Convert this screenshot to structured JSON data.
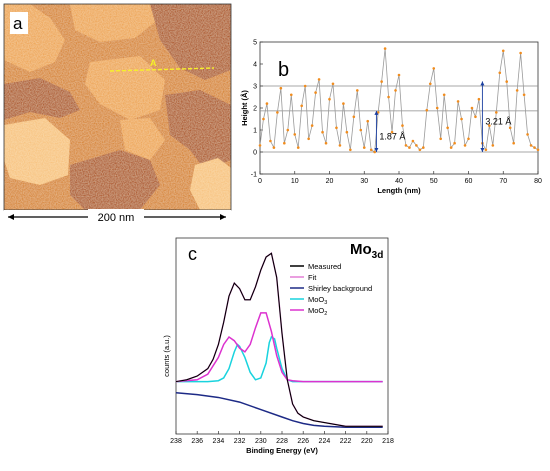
{
  "panel_a": {
    "label": "a",
    "line_label": "A",
    "scale_bar": "200 nm",
    "colors": {
      "terrace_low": "#a94b08",
      "terrace_mid": "#d57f22",
      "terrace_high": "#eda24e",
      "terrace_top": "#f7c17c",
      "line": "#f6f02a"
    }
  },
  "chart_data": [
    {
      "type": "line",
      "panel": "b",
      "label": "b",
      "xlabel": "Length (nm)",
      "ylabel": "Height (Å)",
      "xlim": [
        0,
        80
      ],
      "ylim": [
        -1,
        5
      ],
      "xticks": [
        "0",
        "10",
        "20",
        "30",
        "40",
        "50",
        "60",
        "70",
        "80"
      ],
      "yticks": [
        "-1",
        "0",
        "1",
        "2",
        "3",
        "4",
        "5"
      ],
      "reference_lines": [
        0,
        1.87,
        3.0
      ],
      "annotations": [
        {
          "text": "1.87 Å",
          "x": 33.5,
          "y_from": 0,
          "y_to": 1.87
        },
        {
          "text": "3.21 Å",
          "x": 64,
          "y_from": 0,
          "y_to": 3.21
        }
      ],
      "series": [
        {
          "color": "#f08c1e",
          "x": [
            0,
            1,
            2,
            3,
            4,
            5,
            6,
            7,
            8,
            9,
            10,
            11,
            12,
            13,
            14,
            15,
            16,
            17,
            18,
            19,
            20,
            21,
            22,
            23,
            24,
            25,
            26,
            27,
            28,
            29,
            30,
            31,
            32,
            33,
            34,
            35,
            36,
            37,
            38,
            39,
            40,
            41,
            42,
            43,
            44,
            45,
            46,
            47,
            48,
            49,
            50,
            51,
            52,
            53,
            54,
            55,
            56,
            57,
            58,
            59,
            60,
            61,
            62,
            63,
            64,
            65,
            66,
            67,
            68,
            69,
            70,
            71,
            72,
            73,
            74,
            75,
            76,
            77,
            78,
            79,
            80
          ],
          "y": [
            0.3,
            1.5,
            2.2,
            0.5,
            0.2,
            1.8,
            2.9,
            0.4,
            1.0,
            2.6,
            0.8,
            0.2,
            2.1,
            3.0,
            0.6,
            1.2,
            2.7,
            3.3,
            0.9,
            0.4,
            2.4,
            3.1,
            1.1,
            0.3,
            2.2,
            0.9,
            0.1,
            1.6,
            2.8,
            1.0,
            0.2,
            1.4,
            0.1,
            0.0,
            1.8,
            3.2,
            4.7,
            2.5,
            0.9,
            2.8,
            3.5,
            1.2,
            0.3,
            0.2,
            0.5,
            0.3,
            0.1,
            0.2,
            1.9,
            3.1,
            3.8,
            2.0,
            0.6,
            2.6,
            1.1,
            0.2,
            0.4,
            2.3,
            1.5,
            0.3,
            0.6,
            2.0,
            1.6,
            2.4,
            0.4,
            0.1,
            1.2,
            0.3,
            1.8,
            3.6,
            4.6,
            3.2,
            1.1,
            0.4,
            2.8,
            4.5,
            2.6,
            0.8,
            0.3,
            0.2,
            0.1
          ]
        }
      ]
    },
    {
      "type": "line",
      "panel": "c",
      "label": "c",
      "title_main": "Mo",
      "title_sub": "3d",
      "xlabel": "Binding Energy (eV)",
      "ylabel": "counts (a.u.)",
      "xlim": [
        238,
        218
      ],
      "xticks": [
        "238",
        "236",
        "234",
        "232",
        "230",
        "228",
        "226",
        "224",
        "222",
        "220",
        "218"
      ],
      "legend_position": "top-right",
      "series": [
        {
          "name": "Measured",
          "color": "#000000",
          "x": [
            238,
            237,
            236,
            235,
            234.5,
            234,
            233.5,
            233,
            232.5,
            232,
            231.5,
            231,
            230.5,
            230,
            229.5,
            229,
            228.5,
            228,
            227.5,
            227,
            226.5,
            226,
            225,
            224,
            223,
            222,
            221,
            220,
            219,
            218.5
          ],
          "y": [
            0.26,
            0.27,
            0.29,
            0.33,
            0.38,
            0.46,
            0.58,
            0.72,
            0.79,
            0.76,
            0.7,
            0.7,
            0.77,
            0.86,
            0.93,
            0.95,
            0.82,
            0.52,
            0.27,
            0.14,
            0.09,
            0.07,
            0.05,
            0.04,
            0.03,
            0.02,
            0.02,
            0.02,
            0.02,
            0.02
          ]
        },
        {
          "name": "Fit",
          "color": "#e27fd6",
          "x": [
            238,
            237,
            236,
            235,
            234.5,
            234,
            233.5,
            233,
            232.5,
            232,
            231.5,
            231,
            230.5,
            230,
            229.5,
            229,
            228.5,
            228,
            227.5,
            227,
            226.5,
            226,
            225,
            224,
            223,
            222,
            221,
            220,
            219,
            218.5
          ],
          "y": [
            0.26,
            0.27,
            0.29,
            0.33,
            0.38,
            0.46,
            0.58,
            0.72,
            0.79,
            0.76,
            0.7,
            0.7,
            0.77,
            0.86,
            0.93,
            0.95,
            0.82,
            0.52,
            0.27,
            0.14,
            0.09,
            0.07,
            0.05,
            0.04,
            0.03,
            0.02,
            0.02,
            0.02,
            0.02,
            0.02
          ]
        },
        {
          "name": "Shirley background",
          "color": "#1d2a86",
          "x": [
            238,
            236,
            234,
            232,
            230,
            228,
            227,
            226,
            225,
            224,
            222,
            220,
            218.5
          ],
          "y": [
            0.2,
            0.19,
            0.175,
            0.15,
            0.11,
            0.07,
            0.05,
            0.035,
            0.025,
            0.02,
            0.015,
            0.015,
            0.015
          ]
        },
        {
          "name": "MoO3",
          "name_main": "MoO",
          "name_sub": "3",
          "color": "#19d3de",
          "x": [
            238,
            236,
            235,
            234,
            233.5,
            233,
            232.5,
            232.2,
            232,
            231.5,
            231,
            230.5,
            230,
            229.5,
            229.2,
            229,
            228.7,
            228.5,
            228,
            227.5,
            227,
            226,
            224,
            222,
            218.5
          ],
          "y": [
            0.26,
            0.26,
            0.26,
            0.265,
            0.28,
            0.33,
            0.42,
            0.46,
            0.45,
            0.39,
            0.31,
            0.27,
            0.28,
            0.36,
            0.47,
            0.5,
            0.49,
            0.44,
            0.33,
            0.27,
            0.26,
            0.26,
            0.26,
            0.26,
            0.26
          ]
        },
        {
          "name": "MoO2",
          "name_main": "MoO",
          "name_sub": "2",
          "color": "#dc32cf",
          "x": [
            238,
            236,
            235,
            234,
            233.5,
            233,
            232.5,
            232,
            231.5,
            231,
            230.5,
            230,
            229.5,
            229,
            228.5,
            228,
            227.5,
            227,
            226,
            224,
            222,
            218.5
          ],
          "y": [
            0.26,
            0.27,
            0.3,
            0.39,
            0.46,
            0.5,
            0.48,
            0.44,
            0.42,
            0.46,
            0.55,
            0.63,
            0.63,
            0.53,
            0.4,
            0.31,
            0.27,
            0.265,
            0.26,
            0.26,
            0.26,
            0.26
          ]
        }
      ]
    }
  ]
}
